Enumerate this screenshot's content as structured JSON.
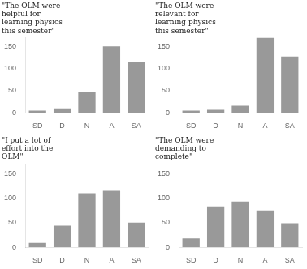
{
  "chart_data": [
    {
      "type": "bar",
      "title": "\"The OLM were\nhelpful for\nlearning physics\nthis semester\"",
      "categories": [
        "SD",
        "D",
        "N",
        "A",
        "SA"
      ],
      "values": [
        5,
        10,
        46,
        150,
        116
      ],
      "color": "#999999",
      "ylim": [
        0,
        170
      ],
      "yticks": [
        0,
        50,
        100,
        150
      ],
      "grid": false
    },
    {
      "type": "bar",
      "title": "\"The OLM were\nrelevant for\nlearning physics\nthis semester\"",
      "categories": [
        "SD",
        "D",
        "N",
        "A",
        "SA"
      ],
      "values": [
        5,
        7,
        16,
        170,
        127
      ],
      "color": "#999999",
      "ylim": [
        0,
        170
      ],
      "yticks": [
        0,
        50,
        100,
        150
      ],
      "grid": false
    },
    {
      "type": "bar",
      "title": "\"I put a lot of\neffort into the\nOLM\"",
      "categories": [
        "SD",
        "D",
        "N",
        "A",
        "SA"
      ],
      "values": [
        9,
        44,
        110,
        115,
        50
      ],
      "color": "#999999",
      "ylim": [
        0,
        170
      ],
      "yticks": [
        0,
        50,
        100,
        150
      ],
      "grid": false
    },
    {
      "type": "bar",
      "title": "\"The OLM were\ndemanding to\ncomplete\"",
      "categories": [
        "SD",
        "D",
        "N",
        "A",
        "SA"
      ],
      "values": [
        18,
        83,
        93,
        75,
        49
      ],
      "color": "#999999",
      "ylim": [
        0,
        170
      ],
      "yticks": [
        0,
        50,
        100,
        150
      ],
      "grid": false
    }
  ]
}
